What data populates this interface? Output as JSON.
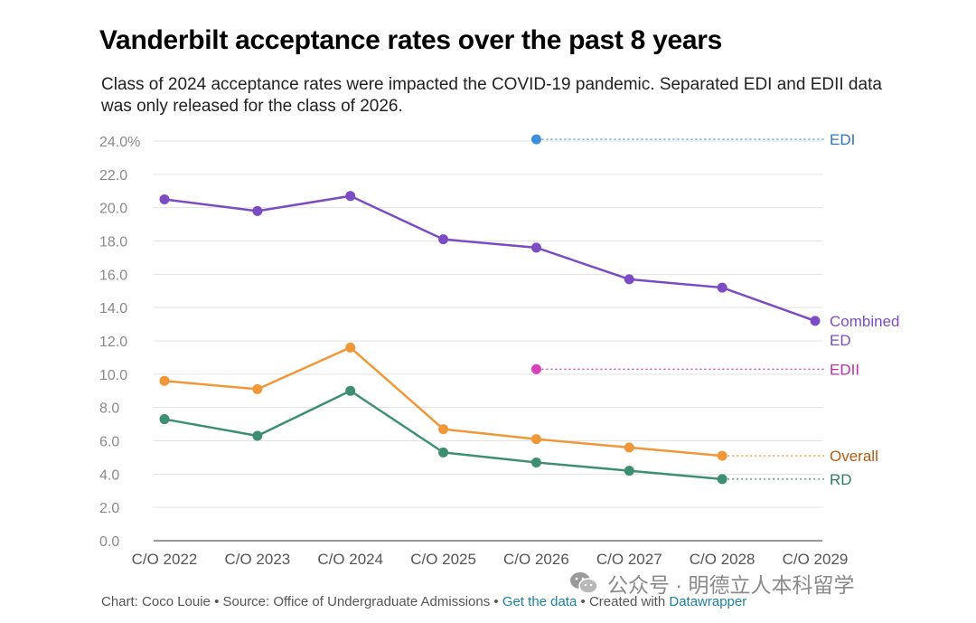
{
  "title": "Vanderbilt acceptance rates over the past 8 years",
  "subtitle": "Class of 2024 acceptance rates were impacted the COVID-19 pandemic. Separated EDI and EDII data was only released for the class of 2026.",
  "footer": {
    "chart_by": "Chart: Coco Louie",
    "separator": " • ",
    "source": "Source: Office of Undergraduate Admissions",
    "get_data": "Get the data",
    "created_with": "Created with",
    "datawrapper": "Datawrapper"
  },
  "watermark": {
    "text": "公众号 · 明德立人本科留学",
    "icon": "wechat-icon"
  },
  "chart_data": {
    "type": "line",
    "title": "Vanderbilt acceptance rates over the past 8 years",
    "xlabel": "",
    "ylabel": "",
    "categories": [
      "C/O 2022",
      "C/O 2023",
      "C/O 2024",
      "C/O 2025",
      "C/O 2026",
      "C/O 2027",
      "C/O 2028",
      "C/O 2029"
    ],
    "ylim": [
      0,
      24
    ],
    "yticks": [
      0,
      2,
      4,
      6,
      8,
      10,
      12,
      14,
      16,
      18,
      20,
      22,
      24
    ],
    "ytick_labels": [
      "0.0",
      "2.0",
      "4.0",
      "6.0",
      "8.0",
      "10.0",
      "12.0",
      "14.0",
      "16.0",
      "18.0",
      "20.0",
      "22.0",
      "24.0%"
    ],
    "grid": true,
    "legend": "direct labels at right",
    "series": [
      {
        "name": "Combined ED",
        "label_lines": [
          "Combined",
          "ED"
        ],
        "color": "#7b4cc4",
        "label_color": "#7b4cc4",
        "values": [
          20.5,
          19.8,
          20.7,
          18.1,
          17.6,
          15.7,
          15.2,
          13.2
        ],
        "dotted_from": null
      },
      {
        "name": "Overall",
        "label_lines": [
          "Overall"
        ],
        "color": "#f09838",
        "label_color": "#b05b0f",
        "values": [
          9.6,
          9.1,
          11.6,
          6.7,
          6.1,
          5.6,
          5.1,
          null
        ],
        "dotted_from": 6
      },
      {
        "name": "RD",
        "label_lines": [
          "RD"
        ],
        "color": "#3e8f72",
        "label_color": "#2e7d63",
        "values": [
          7.3,
          6.3,
          9.0,
          5.3,
          4.7,
          4.2,
          3.7,
          null
        ],
        "dotted_from": 6
      },
      {
        "name": "EDI",
        "label_lines": [
          "EDI"
        ],
        "color": "#3c8fdc",
        "label_color": "#2f78c4",
        "values": [
          null,
          null,
          null,
          null,
          24.1,
          null,
          null,
          null
        ],
        "dotted_from": 4
      },
      {
        "name": "EDII",
        "label_lines": [
          "EDII"
        ],
        "color": "#d742be",
        "label_color": "#c22fab",
        "values": [
          null,
          null,
          null,
          null,
          10.3,
          null,
          null,
          null
        ],
        "dotted_from": 4
      }
    ]
  }
}
